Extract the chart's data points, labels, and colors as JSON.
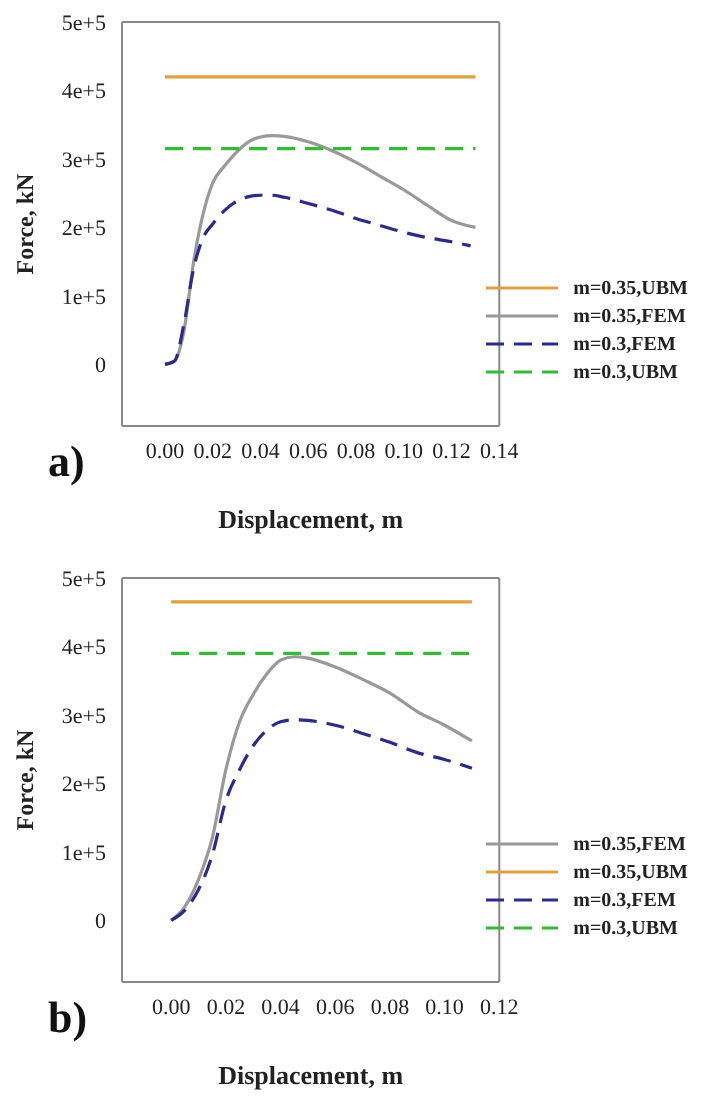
{
  "chart_data": [
    {
      "type": "line",
      "xlabel": "Displacement, m",
      "ylabel": "Force, kN",
      "annotations": [
        "a)"
      ],
      "xlim": [
        -0.018,
        0.14
      ],
      "xticks": [
        {
          "value": 0,
          "label": "0.00"
        },
        {
          "value": 0.02,
          "label": "0.02"
        },
        {
          "value": 0.04,
          "label": "0.04"
        },
        {
          "value": 0.06,
          "label": "0.06"
        },
        {
          "value": 0.08,
          "label": "0.08"
        },
        {
          "value": 0.1,
          "label": "0.10"
        },
        {
          "value": 0.12,
          "label": "0.12"
        },
        {
          "value": 0.14,
          "label": "0.14"
        }
      ],
      "ylim": [
        -90000,
        500000
      ],
      "yticks": [
        0,
        {
          "value": 100000,
          "label": "1e+5"
        },
        {
          "value": 200000,
          "label": "2e+5"
        },
        {
          "value": 300000,
          "label": "3e+5"
        },
        {
          "value": 400000,
          "label": "4e+5"
        },
        {
          "value": 500000,
          "label": "5e+5"
        }
      ],
      "grid": false,
      "legend": "bottom right",
      "marker": "none",
      "series": [
        {
          "name": "m=0.35,UBM",
          "color": "#e0a040",
          "line_style": "solid",
          "x": [
            0,
            0.13
          ],
          "values": [
            420000,
            420000
          ]
        },
        {
          "name": "m=0.35,FEM",
          "color": "#999999",
          "line_style": "solid",
          "x": [
            0,
            0.004,
            0.008,
            0.012,
            0.016,
            0.02,
            0.025,
            0.03,
            0.035,
            0.04,
            0.045,
            0.05,
            0.06,
            0.07,
            0.08,
            0.09,
            0.1,
            0.11,
            0.12,
            0.13
          ],
          "values": [
            0,
            5000,
            50000,
            150000,
            220000,
            265000,
            290000,
            310000,
            325000,
            332000,
            334000,
            333000,
            325000,
            312000,
            295000,
            275000,
            255000,
            232000,
            210000,
            200000
          ]
        },
        {
          "name": "m=0.3,FEM",
          "color": "#2b2b8f",
          "line_style": "dashed",
          "x": [
            0,
            0.004,
            0.008,
            0.012,
            0.016,
            0.02,
            0.025,
            0.03,
            0.035,
            0.04,
            0.045,
            0.05,
            0.06,
            0.07,
            0.08,
            0.09,
            0.1,
            0.11,
            0.12,
            0.128
          ],
          "values": [
            0,
            5000,
            60000,
            140000,
            185000,
            205000,
            225000,
            238000,
            245000,
            247000,
            247000,
            244000,
            235000,
            225000,
            213000,
            203000,
            193000,
            185000,
            179000,
            173000
          ]
        },
        {
          "name": "m=0.3,UBM",
          "color": "#33bb33",
          "line_style": "dashed",
          "x": [
            0,
            0.13
          ],
          "values": [
            315000,
            315000
          ]
        }
      ]
    },
    {
      "type": "line",
      "xlabel": "Displacement, m",
      "ylabel": "Force, kN",
      "annotations": [
        "b)"
      ],
      "xlim": [
        -0.018,
        0.12
      ],
      "xticks": [
        {
          "value": 0,
          "label": "0.00"
        },
        {
          "value": 0.02,
          "label": "0.02"
        },
        {
          "value": 0.04,
          "label": "0.04"
        },
        {
          "value": 0.06,
          "label": "0.06"
        },
        {
          "value": 0.08,
          "label": "0.08"
        },
        {
          "value": 0.1,
          "label": "0.10"
        },
        {
          "value": 0.12,
          "label": "0.12"
        }
      ],
      "ylim": [
        -90000,
        500000
      ],
      "yticks": [
        0,
        {
          "value": 100000,
          "label": "1e+5"
        },
        {
          "value": 200000,
          "label": "2e+5"
        },
        {
          "value": 300000,
          "label": "3e+5"
        },
        {
          "value": 400000,
          "label": "4e+5"
        },
        {
          "value": 500000,
          "label": "5e+5"
        }
      ],
      "grid": false,
      "legend": "bottom right",
      "marker": "none",
      "series": [
        {
          "name": "m=0.35,FEM",
          "color": "#999999",
          "line_style": "solid",
          "x": [
            0,
            0.005,
            0.01,
            0.015,
            0.02,
            0.025,
            0.03,
            0.035,
            0.04,
            0.045,
            0.05,
            0.06,
            0.07,
            0.08,
            0.09,
            0.1,
            0.11
          ],
          "values": [
            0,
            20000,
            60000,
            120000,
            220000,
            290000,
            330000,
            360000,
            380000,
            385000,
            383000,
            370000,
            352000,
            332000,
            305000,
            285000,
            262000
          ]
        },
        {
          "name": "m=0.35,UBM",
          "color": "#e0a040",
          "line_style": "solid",
          "x": [
            0,
            0.11
          ],
          "values": [
            465000,
            465000
          ]
        },
        {
          "name": "m=0.3,FEM",
          "color": "#2b2b8f",
          "line_style": "dashed",
          "x": [
            0,
            0.005,
            0.01,
            0.015,
            0.02,
            0.025,
            0.03,
            0.035,
            0.04,
            0.045,
            0.05,
            0.06,
            0.07,
            0.08,
            0.09,
            0.1,
            0.11
          ],
          "values": [
            0,
            15000,
            45000,
            95000,
            175000,
            220000,
            255000,
            278000,
            290000,
            293000,
            292000,
            285000,
            273000,
            260000,
            245000,
            235000,
            222000
          ]
        },
        {
          "name": "m=0.3,UBM",
          "color": "#33bb33",
          "line_style": "dashed",
          "x": [
            0,
            0.11
          ],
          "values": [
            390000,
            390000
          ]
        }
      ]
    }
  ]
}
